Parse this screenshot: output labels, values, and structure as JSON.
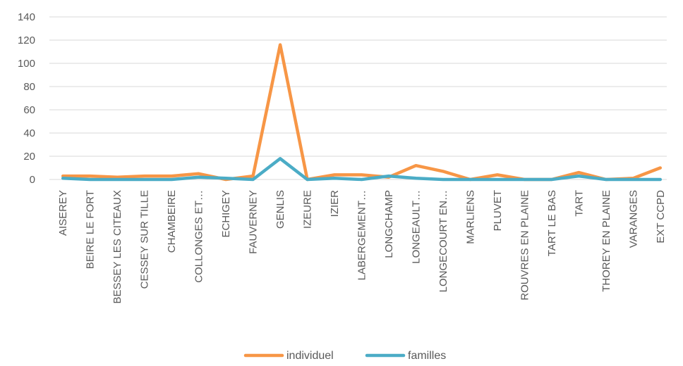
{
  "chart_data": {
    "type": "line",
    "title": "",
    "xlabel": "",
    "ylabel": "",
    "ylim": [
      0,
      140
    ],
    "yticks": [
      0,
      20,
      40,
      60,
      80,
      100,
      120,
      140
    ],
    "grid": true,
    "legend": "bottom",
    "categories": [
      "AISEREY",
      "BEIRE LE FORT",
      "BESSEY LES CITEAUX",
      "CESSEY SUR TILLE",
      "CHAMBEIRE",
      "COLLONGES ET…",
      "ECHIGEY",
      "FAUVERNEY",
      "GENLIS",
      "IZEURE",
      "IZIER",
      "LABERGEMENT…",
      "LONGCHAMP",
      "LONGEAULT…",
      "LONGECOURT EN…",
      "MARLIENS",
      "PLUVET",
      "ROUVRES EN PLAINE",
      "TART LE BAS",
      "TART",
      "THOREY EN PLAINE",
      "VARANGES",
      "EXT CCPD"
    ],
    "series": [
      {
        "name": "individuel",
        "color": "#F79646",
        "values": [
          3,
          3,
          2,
          3,
          3,
          5,
          0,
          3,
          116,
          0,
          4,
          4,
          2,
          12,
          7,
          0,
          4,
          0,
          0,
          6,
          0,
          1,
          10
        ]
      },
      {
        "name": "familles",
        "color": "#4BACC6",
        "values": [
          1,
          0,
          0,
          0,
          0,
          2,
          1,
          0,
          18,
          0,
          1,
          0,
          3,
          1,
          0,
          0,
          0,
          0,
          0,
          3,
          0,
          0,
          0
        ]
      }
    ]
  }
}
